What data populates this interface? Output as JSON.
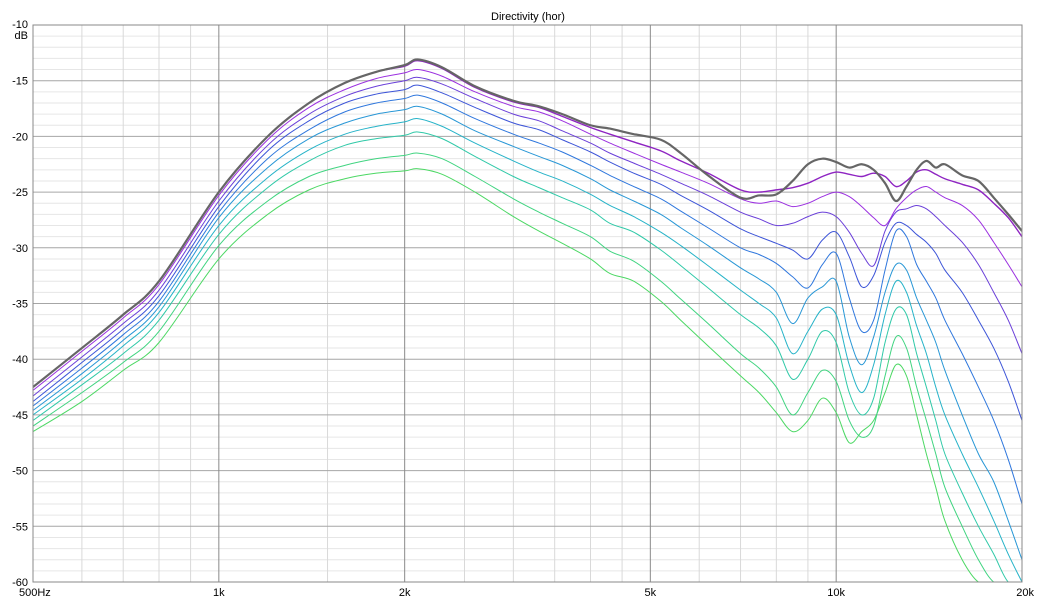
{
  "chart_data": {
    "type": "line",
    "title": "Directivity (hor)",
    "xlabel": "",
    "ylabel": "dB",
    "x_scale": "log",
    "xlim": [
      500,
      20000
    ],
    "ylim": [
      -60,
      -10
    ],
    "grid": true,
    "legend": "none",
    "x_major_ticks": [
      500,
      1000,
      2000,
      5000,
      10000,
      20000
    ],
    "x_tick_labels": [
      "500Hz",
      "1k",
      "2k",
      "5k",
      "10k",
      "20k"
    ],
    "y_ticks": [
      -10,
      -15,
      -20,
      -25,
      -30,
      -35,
      -40,
      -45,
      -50,
      -55,
      -60
    ],
    "y_tick_labels": [
      "-10",
      "-15",
      "-20",
      "-25",
      "-30",
      "-35",
      "-40",
      "-45",
      "-50",
      "-55",
      "-60"
    ],
    "x": [
      500,
      600,
      700,
      800,
      1000,
      1200,
      1400,
      1600,
      1800,
      2000,
      2100,
      2300,
      2600,
      3000,
      3300,
      3600,
      4000,
      4300,
      4700,
      5200,
      5600,
      6200,
      7000,
      7500,
      8000,
      8500,
      9000,
      9500,
      10000,
      10500,
      11000,
      11500,
      12000,
      12500,
      13000,
      13500,
      14000,
      14500,
      15000,
      16000,
      17000,
      18000,
      19000,
      20000
    ],
    "series": [
      {
        "color": "#666666",
        "width": 2.2,
        "values": [
          -42.5,
          -39.0,
          -36.0,
          -33.0,
          -25.0,
          -20.0,
          -17.0,
          -15.2,
          -14.2,
          -13.6,
          -13.1,
          -13.8,
          -15.5,
          -16.8,
          -17.3,
          -18.0,
          -19.0,
          -19.3,
          -19.8,
          -20.3,
          -21.5,
          -23.5,
          -25.5,
          -25.3,
          -25.2,
          -24.0,
          -22.5,
          -22.0,
          -22.3,
          -22.8,
          -22.5,
          -23.0,
          -24.2,
          -25.8,
          -24.5,
          -23.0,
          -22.2,
          -22.8,
          -22.5,
          -23.5,
          -24.0,
          -25.5,
          -27.0,
          -28.5
        ]
      },
      {
        "color": "#8e24c2",
        "width": 1.4,
        "values": [
          -42.5,
          -39.0,
          -36.0,
          -33.0,
          -25.0,
          -20.0,
          -17.0,
          -15.2,
          -14.2,
          -13.7,
          -13.2,
          -13.9,
          -15.6,
          -16.9,
          -17.4,
          -18.2,
          -19.2,
          -19.8,
          -20.5,
          -21.3,
          -22.2,
          -23.3,
          -24.8,
          -25.0,
          -24.8,
          -24.6,
          -24.2,
          -23.6,
          -23.2,
          -23.4,
          -23.6,
          -23.3,
          -23.6,
          -24.5,
          -24.0,
          -23.2,
          -23.0,
          -23.4,
          -23.8,
          -24.3,
          -24.8,
          -26.0,
          -27.3,
          -29.0
        ]
      },
      {
        "color": "#9b30e0",
        "width": 1.0,
        "values": [
          -42.8,
          -39.3,
          -36.3,
          -33.3,
          -25.3,
          -20.3,
          -17.4,
          -15.8,
          -14.8,
          -14.3,
          -14.0,
          -14.6,
          -16.0,
          -17.3,
          -17.8,
          -18.6,
          -19.8,
          -20.6,
          -21.5,
          -22.5,
          -23.2,
          -24.2,
          -25.6,
          -26.0,
          -25.8,
          -26.3,
          -26.0,
          -25.4,
          -25.0,
          -25.4,
          -26.3,
          -27.3,
          -28.0,
          -26.5,
          -25.5,
          -24.8,
          -24.5,
          -25.0,
          -25.5,
          -26.2,
          -27.5,
          -29.5,
          -31.5,
          -33.5
        ]
      },
      {
        "color": "#6a3fd9",
        "width": 1.0,
        "values": [
          -43.3,
          -39.8,
          -36.8,
          -33.8,
          -25.8,
          -20.8,
          -18.0,
          -16.4,
          -15.5,
          -15.0,
          -14.7,
          -15.3,
          -16.6,
          -18.0,
          -18.6,
          -19.5,
          -20.6,
          -21.5,
          -22.4,
          -23.4,
          -24.2,
          -25.3,
          -26.8,
          -27.4,
          -28.0,
          -27.8,
          -27.2,
          -26.8,
          -27.2,
          -28.6,
          -30.5,
          -31.6,
          -28.5,
          -26.8,
          -26.5,
          -26.2,
          -26.5,
          -27.2,
          -28.0,
          -29.5,
          -31.5,
          -34.0,
          -36.5,
          -39.5
        ]
      },
      {
        "color": "#3d55d8",
        "width": 1.0,
        "values": [
          -43.8,
          -40.3,
          -37.3,
          -34.3,
          -26.3,
          -21.3,
          -18.6,
          -17.0,
          -16.2,
          -15.8,
          -15.4,
          -16.1,
          -17.4,
          -18.8,
          -19.4,
          -20.3,
          -21.4,
          -22.3,
          -23.3,
          -24.3,
          -25.3,
          -26.6,
          -28.3,
          -29.0,
          -29.6,
          -30.2,
          -31.0,
          -29.3,
          -28.6,
          -30.8,
          -33.5,
          -32.5,
          -29.5,
          -27.8,
          -28.0,
          -28.8,
          -29.5,
          -30.5,
          -32.0,
          -34.0,
          -36.5,
          -39.0,
          -42.0,
          -45.5
        ]
      },
      {
        "color": "#2f77dd",
        "width": 1.0,
        "values": [
          -44.2,
          -40.8,
          -37.8,
          -34.8,
          -26.8,
          -22.0,
          -19.4,
          -17.8,
          -17.0,
          -16.6,
          -16.3,
          -17.0,
          -18.4,
          -19.8,
          -20.6,
          -21.4,
          -22.6,
          -23.5,
          -24.5,
          -25.6,
          -26.7,
          -28.2,
          -30.0,
          -30.6,
          -31.4,
          -32.6,
          -33.6,
          -31.5,
          -30.5,
          -34.5,
          -37.5,
          -36.5,
          -32.0,
          -28.5,
          -29.0,
          -31.5,
          -33.0,
          -34.5,
          -36.5,
          -39.5,
          -42.5,
          -45.5,
          -49.0,
          -53.0
        ]
      },
      {
        "color": "#2897d6",
        "width": 1.0,
        "values": [
          -44.6,
          -41.3,
          -38.3,
          -35.3,
          -27.3,
          -22.8,
          -20.2,
          -18.8,
          -18.0,
          -17.6,
          -17.3,
          -18.0,
          -19.5,
          -20.9,
          -21.8,
          -22.6,
          -23.8,
          -24.8,
          -25.8,
          -27.0,
          -28.2,
          -29.8,
          -31.8,
          -32.8,
          -34.0,
          -36.8,
          -34.5,
          -33.5,
          -33.0,
          -38.0,
          -40.5,
          -38.0,
          -34.0,
          -31.5,
          -32.0,
          -34.5,
          -36.5,
          -38.5,
          -41.0,
          -45.0,
          -48.5,
          -51.0,
          -54.5,
          -58.0
        ]
      },
      {
        "color": "#26b3c8",
        "width": 1.0,
        "values": [
          -45.0,
          -41.8,
          -38.8,
          -35.8,
          -28.0,
          -23.7,
          -21.2,
          -19.8,
          -19.1,
          -18.7,
          -18.4,
          -19.1,
          -20.6,
          -22.2,
          -23.2,
          -24.0,
          -25.2,
          -26.2,
          -27.2,
          -28.6,
          -29.8,
          -31.6,
          -33.8,
          -35.0,
          -36.3,
          -39.5,
          -37.5,
          -35.5,
          -36.0,
          -40.5,
          -43.0,
          -40.5,
          -36.0,
          -33.0,
          -34.0,
          -37.0,
          -39.5,
          -42.5,
          -45.0,
          -48.5,
          -51.5,
          -54.5,
          -57.5,
          -60.0
        ]
      },
      {
        "color": "#30c9a8",
        "width": 1.0,
        "values": [
          -45.5,
          -42.3,
          -39.5,
          -36.5,
          -28.8,
          -24.6,
          -22.2,
          -20.8,
          -20.2,
          -19.9,
          -19.6,
          -20.2,
          -21.8,
          -23.6,
          -24.6,
          -25.5,
          -26.6,
          -27.8,
          -28.6,
          -30.2,
          -31.6,
          -33.6,
          -36.0,
          -37.2,
          -38.8,
          -41.8,
          -40.0,
          -37.5,
          -38.5,
          -43.0,
          -45.0,
          -43.5,
          -38.5,
          -35.5,
          -36.0,
          -39.5,
          -42.5,
          -45.5,
          -48.5,
          -52.0,
          -55.0,
          -57.5,
          -60.0,
          -60.0
        ]
      },
      {
        "color": "#40d480",
        "width": 1.0,
        "values": [
          -46.0,
          -43.0,
          -40.3,
          -37.5,
          -29.8,
          -25.8,
          -23.6,
          -22.6,
          -22.0,
          -21.7,
          -21.5,
          -22.0,
          -23.6,
          -25.6,
          -26.8,
          -27.8,
          -29.0,
          -30.3,
          -31.2,
          -33.0,
          -34.6,
          -36.8,
          -39.5,
          -40.8,
          -42.5,
          -45.0,
          -43.0,
          -41.0,
          -42.0,
          -45.5,
          -47.0,
          -46.0,
          -41.5,
          -38.0,
          -39.0,
          -42.5,
          -45.5,
          -48.5,
          -51.5,
          -55.0,
          -58.0,
          -60.0,
          -60.0,
          -60.0
        ]
      },
      {
        "color": "#4cd864",
        "width": 1.0,
        "values": [
          -46.5,
          -43.8,
          -41.0,
          -38.5,
          -31.0,
          -27.0,
          -24.8,
          -23.8,
          -23.3,
          -23.1,
          -22.9,
          -23.4,
          -25.0,
          -27.2,
          -28.5,
          -29.6,
          -31.0,
          -32.3,
          -33.0,
          -34.8,
          -36.5,
          -38.8,
          -41.5,
          -43.0,
          -44.8,
          -46.5,
          -45.5,
          -43.5,
          -44.8,
          -47.5,
          -46.5,
          -45.5,
          -43.0,
          -40.5,
          -41.5,
          -45.0,
          -48.5,
          -51.5,
          -54.5,
          -58.0,
          -60.0,
          -60.0,
          -60.0,
          -60.0
        ]
      }
    ]
  }
}
